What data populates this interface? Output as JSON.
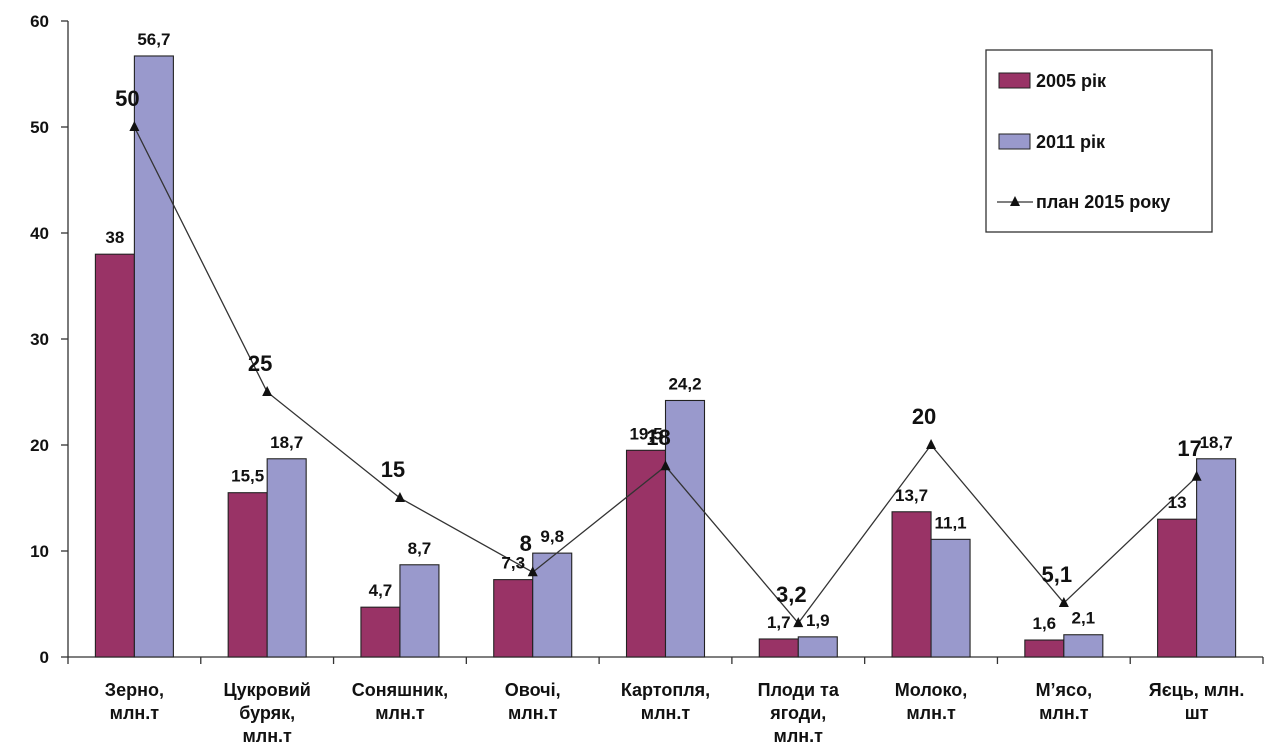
{
  "chart_data": {
    "type": "bar",
    "categories": [
      [
        "Зерно,",
        "млн.т"
      ],
      [
        "Цукровий",
        "буряк,",
        "млн.т"
      ],
      [
        "Соняшник,",
        "млн.т"
      ],
      [
        "Овочі,",
        "млн.т"
      ],
      [
        "Картопля,",
        "млн.т"
      ],
      [
        "Плоди та",
        "ягоди,",
        "млн.т"
      ],
      [
        "Молоко,",
        "млн.т"
      ],
      [
        "М’ясо,",
        "млн.т"
      ],
      [
        "Яєць, млн.",
        "шт"
      ]
    ],
    "series": [
      {
        "name": "2005 рік",
        "kind": "bar",
        "color": "#993366",
        "values": [
          38,
          15.5,
          4.7,
          7.3,
          19.5,
          1.7,
          13.7,
          1.6,
          13
        ],
        "labels": [
          "38",
          "15,5",
          "4,7",
          "7,3",
          "19,5",
          "1,7",
          "13,7",
          "1,6",
          "13"
        ]
      },
      {
        "name": "2011 рік",
        "kind": "bar",
        "color": "#9999cc",
        "values": [
          56.7,
          18.7,
          8.7,
          9.8,
          24.2,
          1.9,
          11.1,
          2.1,
          18.7
        ],
        "labels": [
          "56,7",
          "18,7",
          "8,7",
          "9,8",
          "24,2",
          "1,9",
          "11,1",
          "2,1",
          "18,7"
        ]
      },
      {
        "name": "план 2015 року",
        "kind": "line",
        "color": "#333333",
        "values": [
          50,
          25,
          15,
          8,
          18,
          3.2,
          20,
          5.1,
          17
        ],
        "labels": [
          "50",
          "25",
          "15",
          "8",
          "18",
          "3,2",
          "20",
          "5,1",
          "17"
        ]
      }
    ],
    "ylim": [
      0,
      60
    ],
    "yticks": [
      0,
      10,
      20,
      30,
      40,
      50,
      60
    ],
    "grid": false,
    "legend": "top-right"
  }
}
